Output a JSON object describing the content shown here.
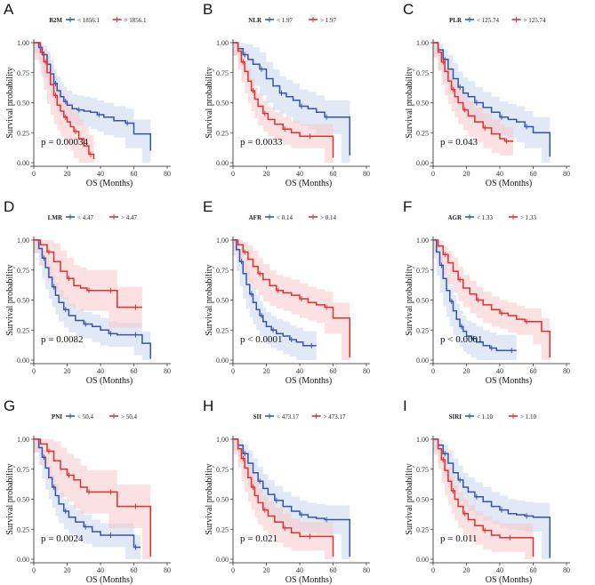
{
  "colors": {
    "low": "#3355b0",
    "high": "#e03030",
    "low_band": "#c9d6ee",
    "high_band": "#f8c9c9"
  },
  "chart_data": [
    {
      "type": "line",
      "panel": "A",
      "legend_title": "B2M",
      "legend": [
        "< 1856.1",
        "> 1856.1"
      ],
      "pvalue": "p = 0.00034",
      "xlabel": "OS (Months)",
      "ylabel": "Survival probability",
      "xlim": [
        0,
        80
      ],
      "ylim": [
        0,
        1
      ],
      "xticks": [
        "0",
        "20",
        "40",
        "60",
        "80"
      ],
      "yticks": [
        "0.00",
        "0.25",
        "0.50",
        "0.75",
        "1.00"
      ],
      "series": [
        {
          "name": "< 1856.1",
          "x": [
            0,
            3,
            5,
            8,
            10,
            12,
            14,
            16,
            18,
            20,
            23,
            26,
            30,
            34,
            38,
            42,
            48,
            55,
            60,
            65,
            70
          ],
          "y": [
            1.0,
            0.96,
            0.9,
            0.82,
            0.74,
            0.66,
            0.6,
            0.55,
            0.51,
            0.48,
            0.45,
            0.44,
            0.43,
            0.42,
            0.4,
            0.38,
            0.35,
            0.33,
            0.24,
            0.24,
            0.1
          ]
        },
        {
          "name": "> 1856.1",
          "x": [
            0,
            4,
            6,
            8,
            10,
            12,
            14,
            16,
            18,
            20,
            22,
            24,
            27,
            30,
            33,
            36
          ],
          "y": [
            1.0,
            0.92,
            0.84,
            0.75,
            0.65,
            0.56,
            0.48,
            0.43,
            0.38,
            0.34,
            0.3,
            0.26,
            0.2,
            0.14,
            0.07,
            0.03
          ]
        }
      ],
      "band_width": [
        0.12,
        0.16
      ]
    },
    {
      "type": "line",
      "panel": "B",
      "legend_title": "NLR",
      "legend": [
        "< 1.97",
        "> 1.97"
      ],
      "pvalue": "p = 0.0033",
      "xlabel": "OS (Months)",
      "ylabel": "Survival probability",
      "xlim": [
        0,
        80
      ],
      "ylim": [
        0,
        1
      ],
      "xticks": [
        "0",
        "20",
        "40",
        "60",
        "80"
      ],
      "yticks": [
        "0.00",
        "0.25",
        "0.50",
        "0.75",
        "1.00"
      ],
      "series": [
        {
          "name": "< 1.97",
          "x": [
            0,
            3,
            6,
            9,
            12,
            16,
            20,
            24,
            28,
            32,
            36,
            40,
            45,
            50,
            55,
            60,
            65,
            70
          ],
          "y": [
            1.0,
            0.95,
            0.9,
            0.86,
            0.82,
            0.78,
            0.7,
            0.64,
            0.58,
            0.55,
            0.52,
            0.47,
            0.45,
            0.42,
            0.38,
            0.38,
            0.38,
            0.06
          ]
        },
        {
          "name": "> 1.97",
          "x": [
            0,
            3,
            5,
            7,
            9,
            11,
            13,
            15,
            18,
            21,
            25,
            30,
            35,
            40,
            45,
            50,
            55,
            60
          ],
          "y": [
            1.0,
            0.93,
            0.84,
            0.76,
            0.68,
            0.6,
            0.53,
            0.47,
            0.41,
            0.36,
            0.32,
            0.28,
            0.25,
            0.22,
            0.22,
            0.22,
            0.22,
            0.04
          ]
        }
      ],
      "band_width": [
        0.14,
        0.1
      ]
    },
    {
      "type": "line",
      "panel": "C",
      "legend_title": "PLR",
      "legend": [
        "< 125.74",
        "> 125.74"
      ],
      "pvalue": "p = 0.043",
      "xlabel": "OS (Months)",
      "ylabel": "Survival probability",
      "xlim": [
        0,
        80
      ],
      "ylim": [
        0,
        1
      ],
      "xticks": [
        "0",
        "20",
        "40",
        "60",
        "80"
      ],
      "yticks": [
        "0.00",
        "0.25",
        "0.50",
        "0.75",
        "1.00"
      ],
      "series": [
        {
          "name": "< 125.74",
          "x": [
            0,
            3,
            6,
            9,
            12,
            15,
            18,
            21,
            25,
            30,
            35,
            40,
            45,
            50,
            55,
            60,
            65,
            70
          ],
          "y": [
            1.0,
            0.94,
            0.86,
            0.78,
            0.7,
            0.63,
            0.58,
            0.55,
            0.5,
            0.46,
            0.42,
            0.38,
            0.36,
            0.34,
            0.3,
            0.25,
            0.25,
            0.05
          ]
        },
        {
          "name": "> 125.74",
          "x": [
            0,
            3,
            5,
            7,
            9,
            11,
            13,
            15,
            18,
            21,
            25,
            30,
            35,
            40,
            43,
            48
          ],
          "y": [
            1.0,
            0.92,
            0.84,
            0.76,
            0.68,
            0.61,
            0.55,
            0.5,
            0.44,
            0.39,
            0.34,
            0.29,
            0.24,
            0.2,
            0.18,
            0.18
          ]
        }
      ],
      "band_width": [
        0.13,
        0.12
      ]
    },
    {
      "type": "line",
      "panel": "D",
      "legend_title": "LMR",
      "legend": [
        "< 4.47",
        "> 4.47"
      ],
      "pvalue": "p = 0.0082",
      "xlabel": "OS (Months)",
      "ylabel": "Survival probability",
      "xlim": [
        0,
        80
      ],
      "ylim": [
        0,
        1
      ],
      "xticks": [
        "0",
        "20",
        "40",
        "60",
        "80"
      ],
      "yticks": [
        "0.00",
        "0.25",
        "0.50",
        "0.75",
        "1.00"
      ],
      "series": [
        {
          "name": "< 4.47",
          "x": [
            0,
            3,
            5,
            7,
            9,
            11,
            13,
            15,
            18,
            21,
            25,
            30,
            35,
            40,
            45,
            50,
            55,
            60,
            65,
            70
          ],
          "y": [
            1.0,
            0.93,
            0.85,
            0.77,
            0.69,
            0.61,
            0.54,
            0.48,
            0.42,
            0.37,
            0.33,
            0.3,
            0.28,
            0.25,
            0.22,
            0.21,
            0.21,
            0.21,
            0.14,
            0.01
          ]
        },
        {
          "name": "> 4.47",
          "x": [
            0,
            4,
            8,
            12,
            16,
            20,
            24,
            28,
            32,
            36,
            40,
            45,
            50,
            55,
            60,
            65
          ],
          "y": [
            1.0,
            0.96,
            0.9,
            0.82,
            0.74,
            0.68,
            0.62,
            0.6,
            0.58,
            0.58,
            0.58,
            0.58,
            0.44,
            0.44,
            0.44,
            0.44
          ]
        }
      ],
      "band_width": [
        0.1,
        0.17
      ]
    },
    {
      "type": "line",
      "panel": "E",
      "legend_title": "AFR",
      "legend": [
        "< 0.14",
        "> 0.14"
      ],
      "pvalue": "p < 0.0001",
      "xlabel": "OS (Months)",
      "ylabel": "Survival probability",
      "xlim": [
        0,
        80
      ],
      "ylim": [
        0,
        1
      ],
      "xticks": [
        "0",
        "20",
        "40",
        "60",
        "80"
      ],
      "yticks": [
        "0.00",
        "0.25",
        "0.50",
        "0.75",
        "1.00"
      ],
      "series": [
        {
          "name": "< 0.14",
          "x": [
            0,
            2,
            4,
            6,
            8,
            10,
            12,
            14,
            16,
            18,
            20,
            23,
            26,
            30,
            34,
            38,
            42,
            46,
            50
          ],
          "y": [
            1.0,
            0.92,
            0.82,
            0.72,
            0.63,
            0.55,
            0.48,
            0.42,
            0.37,
            0.32,
            0.28,
            0.25,
            0.22,
            0.2,
            0.17,
            0.15,
            0.12,
            0.12,
            0.12
          ]
        },
        {
          "name": "> 0.14",
          "x": [
            0,
            3,
            6,
            9,
            12,
            15,
            18,
            22,
            26,
            30,
            35,
            40,
            45,
            50,
            55,
            60,
            65,
            70
          ],
          "y": [
            1.0,
            0.96,
            0.9,
            0.84,
            0.78,
            0.72,
            0.67,
            0.62,
            0.58,
            0.56,
            0.54,
            0.51,
            0.48,
            0.46,
            0.44,
            0.35,
            0.35,
            0.02
          ]
        }
      ],
      "band_width": [
        0.12,
        0.13
      ]
    },
    {
      "type": "line",
      "panel": "F",
      "legend_title": "AGR",
      "legend": [
        "< 1.33",
        "> 1.33"
      ],
      "pvalue": "p < 0.0001",
      "xlabel": "OS (Months)",
      "ylabel": "Survival probability",
      "xlim": [
        0,
        80
      ],
      "ylim": [
        0,
        1
      ],
      "xticks": [
        "0",
        "20",
        "40",
        "60",
        "80"
      ],
      "yticks": [
        "0.00",
        "0.25",
        "0.50",
        "0.75",
        "1.00"
      ],
      "series": [
        {
          "name": "< 1.33",
          "x": [
            0,
            2,
            4,
            6,
            8,
            10,
            12,
            14,
            16,
            18,
            20,
            23,
            26,
            30,
            34,
            38,
            42,
            46,
            50
          ],
          "y": [
            1.0,
            0.9,
            0.79,
            0.68,
            0.58,
            0.49,
            0.41,
            0.34,
            0.28,
            0.24,
            0.2,
            0.18,
            0.15,
            0.12,
            0.1,
            0.08,
            0.08,
            0.08,
            0.08
          ]
        },
        {
          "name": "> 1.33",
          "x": [
            0,
            3,
            6,
            9,
            12,
            15,
            18,
            22,
            26,
            30,
            35,
            40,
            45,
            50,
            55,
            60,
            65,
            70
          ],
          "y": [
            1.0,
            0.95,
            0.88,
            0.81,
            0.74,
            0.67,
            0.6,
            0.55,
            0.5,
            0.46,
            0.42,
            0.39,
            0.37,
            0.34,
            0.32,
            0.32,
            0.24,
            0.02
          ]
        }
      ],
      "band_width": [
        0.13,
        0.11
      ]
    },
    {
      "type": "line",
      "panel": "G",
      "legend_title": "PNI",
      "legend": [
        "< 50.4",
        "> 50.4"
      ],
      "pvalue": "p = 0.0024",
      "xlabel": "OS (Months)",
      "ylabel": "Survival probability",
      "xlim": [
        0,
        80
      ],
      "ylim": [
        0,
        1
      ],
      "xticks": [
        "0",
        "20",
        "40",
        "60",
        "80"
      ],
      "yticks": [
        "0.00",
        "0.25",
        "0.50",
        "0.75",
        "1.00"
      ],
      "series": [
        {
          "name": "< 50.4",
          "x": [
            0,
            3,
            5,
            7,
            9,
            11,
            13,
            15,
            18,
            21,
            25,
            30,
            35,
            40,
            45,
            50,
            55,
            60,
            64
          ],
          "y": [
            1.0,
            0.93,
            0.85,
            0.76,
            0.68,
            0.6,
            0.53,
            0.46,
            0.4,
            0.35,
            0.31,
            0.27,
            0.23,
            0.2,
            0.2,
            0.2,
            0.2,
            0.1,
            0.1
          ]
        },
        {
          "name": "> 50.4",
          "x": [
            0,
            4,
            8,
            12,
            16,
            20,
            24,
            28,
            32,
            36,
            40,
            45,
            50,
            55,
            60,
            65,
            70
          ],
          "y": [
            1.0,
            0.96,
            0.9,
            0.82,
            0.75,
            0.7,
            0.66,
            0.6,
            0.56,
            0.56,
            0.56,
            0.56,
            0.44,
            0.44,
            0.44,
            0.44,
            0.02
          ]
        }
      ],
      "band_width": [
        0.1,
        0.18
      ]
    },
    {
      "type": "line",
      "panel": "H",
      "legend_title": "SII",
      "legend": [
        "< 473.17",
        "> 473.17"
      ],
      "pvalue": "p = 0.021",
      "xlabel": "OS (Months)",
      "ylabel": "Survival probability",
      "xlim": [
        0,
        80
      ],
      "ylim": [
        0,
        1
      ],
      "xticks": [
        "0",
        "20",
        "40",
        "60",
        "80"
      ],
      "yticks": [
        "0.00",
        "0.25",
        "0.50",
        "0.75",
        "1.00"
      ],
      "series": [
        {
          "name": "< 473.17",
          "x": [
            0,
            3,
            6,
            9,
            12,
            15,
            18,
            21,
            25,
            30,
            35,
            40,
            45,
            50,
            55,
            60,
            65,
            70
          ],
          "y": [
            1.0,
            0.95,
            0.88,
            0.8,
            0.72,
            0.65,
            0.59,
            0.54,
            0.49,
            0.44,
            0.4,
            0.37,
            0.35,
            0.34,
            0.33,
            0.33,
            0.33,
            0.02
          ]
        },
        {
          "name": "> 473.17",
          "x": [
            0,
            3,
            5,
            7,
            9,
            11,
            13,
            15,
            18,
            21,
            25,
            30,
            35,
            40,
            45,
            50,
            55,
            60
          ],
          "y": [
            1.0,
            0.92,
            0.84,
            0.76,
            0.68,
            0.6,
            0.53,
            0.47,
            0.41,
            0.36,
            0.31,
            0.26,
            0.22,
            0.19,
            0.19,
            0.19,
            0.19,
            0.02
          ]
        }
      ],
      "band_width": [
        0.12,
        0.12
      ]
    },
    {
      "type": "line",
      "panel": "I",
      "legend_title": "SIRI",
      "legend": [
        "< 1.10",
        "> 1.10"
      ],
      "pvalue": "p = 0.011",
      "xlabel": "OS (Months)",
      "ylabel": "Survival probability",
      "xlim": [
        0,
        80
      ],
      "ylim": [
        0,
        1
      ],
      "xticks": [
        "0",
        "20",
        "40",
        "60",
        "80"
      ],
      "yticks": [
        "0.00",
        "0.25",
        "0.50",
        "0.75",
        "1.00"
      ],
      "series": [
        {
          "name": "< 1.10",
          "x": [
            0,
            3,
            6,
            9,
            12,
            15,
            18,
            21,
            25,
            30,
            35,
            40,
            45,
            50,
            55,
            60,
            65,
            70
          ],
          "y": [
            1.0,
            0.95,
            0.88,
            0.8,
            0.72,
            0.66,
            0.6,
            0.56,
            0.52,
            0.48,
            0.44,
            0.41,
            0.38,
            0.37,
            0.36,
            0.35,
            0.35,
            0.01
          ]
        },
        {
          "name": "> 1.10",
          "x": [
            0,
            3,
            5,
            7,
            9,
            11,
            13,
            15,
            18,
            21,
            25,
            30,
            35,
            40,
            45,
            50,
            55,
            60
          ],
          "y": [
            1.0,
            0.92,
            0.83,
            0.74,
            0.65,
            0.57,
            0.5,
            0.44,
            0.38,
            0.33,
            0.28,
            0.24,
            0.2,
            0.18,
            0.18,
            0.18,
            0.18,
            0.02
          ]
        }
      ],
      "band_width": [
        0.12,
        0.12
      ]
    }
  ]
}
